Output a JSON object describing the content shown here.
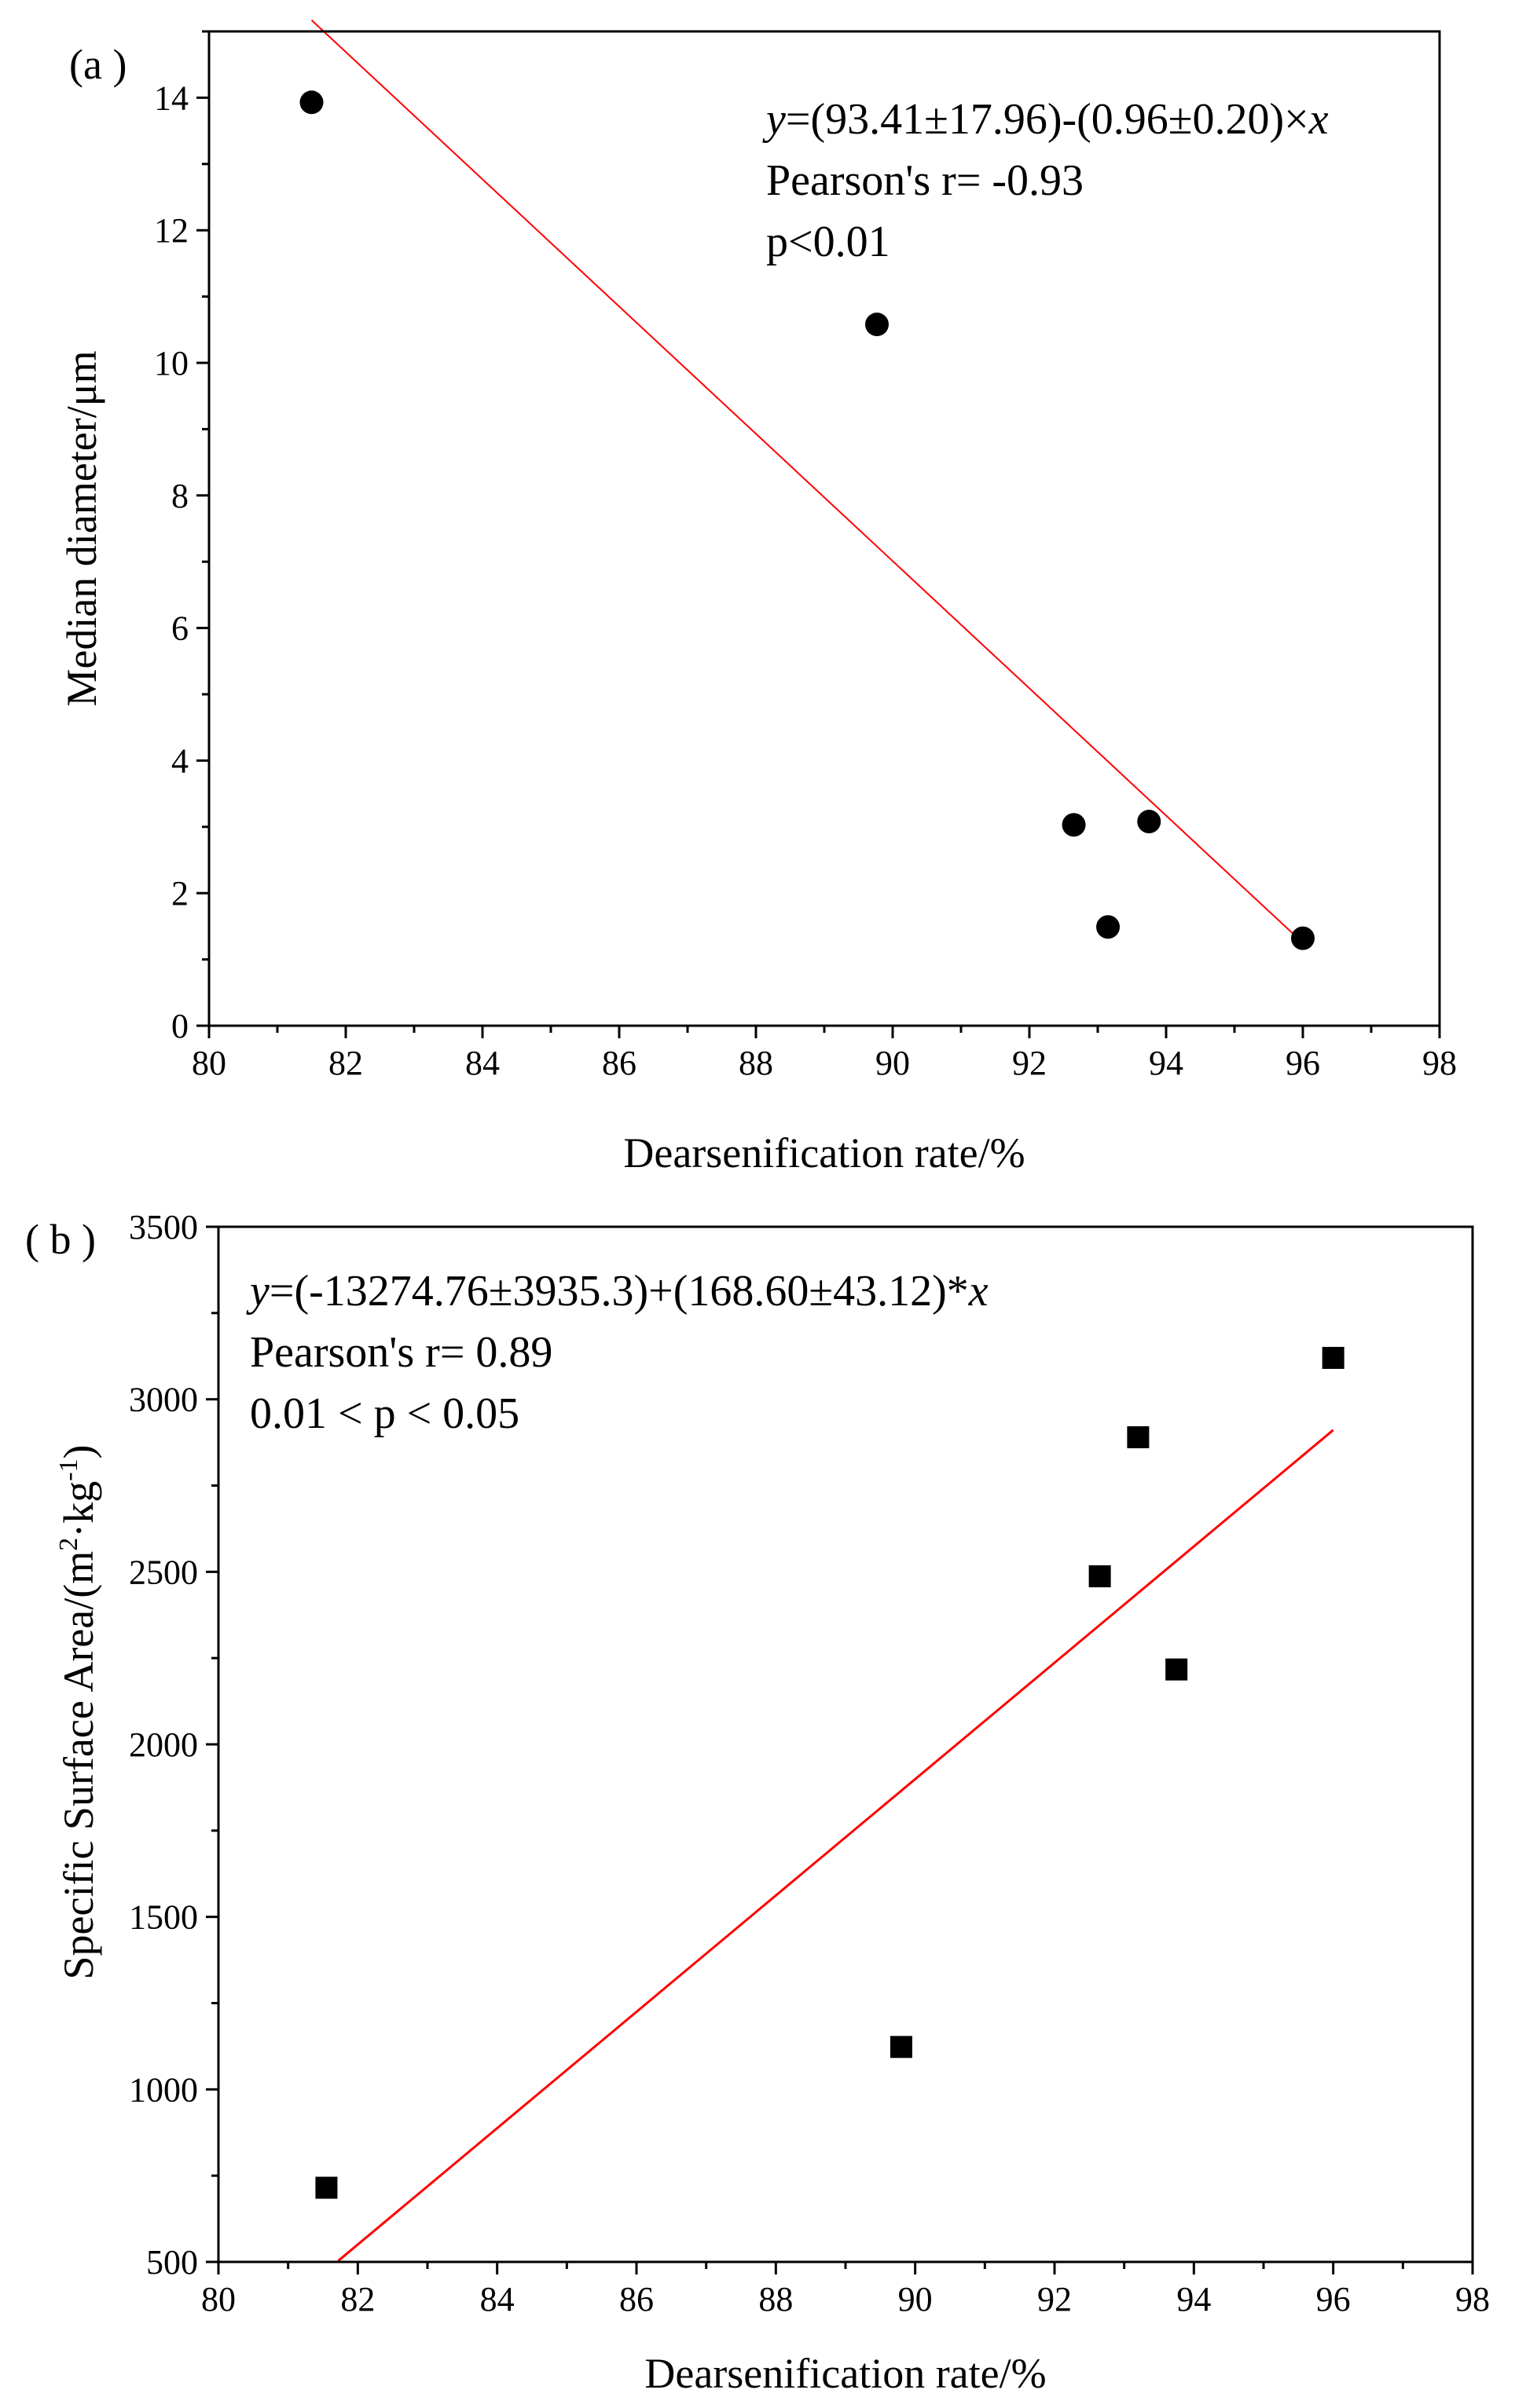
{
  "chart_data": [
    {
      "panel": "(a )",
      "type": "scatter",
      "marker": "circle",
      "xlabel": "Dearsenification rate/%",
      "ylabel": "Median diameter/μm",
      "xlim": [
        80,
        98
      ],
      "ylim": [
        0,
        15
      ],
      "xticks": [
        80,
        82,
        84,
        86,
        88,
        90,
        92,
        94,
        96,
        98
      ],
      "yticks": [
        0,
        2,
        4,
        6,
        8,
        10,
        12,
        14
      ],
      "points": [
        {
          "x": 81.5,
          "y": 13.93
        },
        {
          "x": 89.77,
          "y": 10.58
        },
        {
          "x": 92.65,
          "y": 3.03
        },
        {
          "x": 93.15,
          "y": 1.49
        },
        {
          "x": 93.75,
          "y": 3.08
        },
        {
          "x": 96.0,
          "y": 1.32
        }
      ],
      "fit": {
        "slope": -0.96,
        "intercept": 93.41,
        "x_range": [
          81.5,
          96.0
        ],
        "color": "#ff0000"
      },
      "annotations": {
        "equation_var": "y",
        "equation_body": "=(93.41±17.96)-(0.96±0.20)×",
        "equation_var2": "x",
        "pearson": "Pearson's r= -0.93",
        "p_value": "p<0.01"
      }
    },
    {
      "panel": "( b )",
      "type": "scatter",
      "marker": "square",
      "xlabel": "Dearsenification rate/%",
      "ylabel_main": "Specific Surface Area/(m",
      "ylabel_sup1": "2",
      "ylabel_mid": "·kg",
      "ylabel_sup2": "-1",
      "ylabel_end": ")",
      "xlim": [
        80,
        98
      ],
      "ylim": [
        500,
        3500
      ],
      "xticks": [
        80,
        82,
        84,
        86,
        88,
        90,
        92,
        94,
        96,
        98
      ],
      "yticks": [
        500,
        1000,
        1500,
        2000,
        2500,
        3000,
        3500
      ],
      "points": [
        {
          "x": 81.55,
          "y": 715
        },
        {
          "x": 89.8,
          "y": 1123
        },
        {
          "x": 92.65,
          "y": 2487
        },
        {
          "x": 93.2,
          "y": 2890
        },
        {
          "x": 93.75,
          "y": 2217
        },
        {
          "x": 96.0,
          "y": 3120
        }
      ],
      "fit": {
        "slope": 168.6,
        "intercept": -13274.76,
        "x_range": [
          81.72,
          96.0
        ],
        "color": "#ff0000"
      },
      "annotations": {
        "equation_var": "y",
        "equation_body": "=(-13274.76±3935.3)+(168.60±43.12)*",
        "equation_var2": "x",
        "pearson": "Pearson's r= 0.89",
        "p_value": "0.01 < p < 0.05"
      }
    }
  ]
}
